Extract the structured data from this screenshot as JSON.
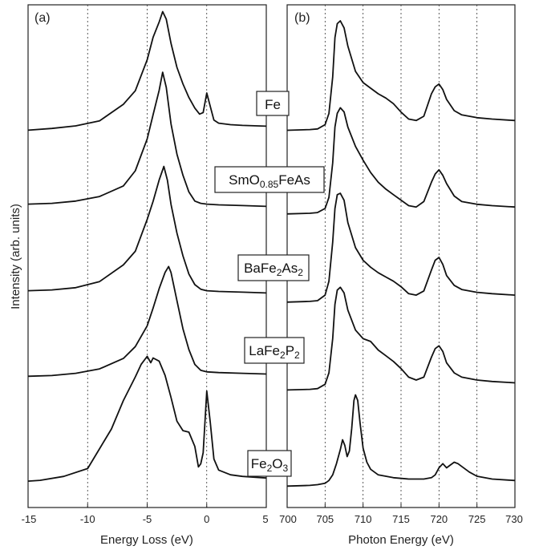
{
  "chart_data": [
    {
      "type": "line",
      "panel_label": "(a)",
      "xlabel": "Energy Loss (eV)",
      "ylabel": "Intensity (arb. units)",
      "xlim": [
        -15,
        5
      ],
      "xticks": [
        -15,
        -10,
        -5,
        0,
        5
      ],
      "grid": "vertical dotted at each tick",
      "series": [
        {
          "sample": "Fe",
          "x": [
            -15,
            -13,
            -11,
            -9,
            -7,
            -6,
            -5,
            -4.5,
            -4,
            -3.7,
            -3.4,
            -3,
            -2.5,
            -2,
            -1.5,
            -1,
            -0.6,
            -0.3,
            0,
            0.3,
            0.6,
            1,
            2,
            3,
            5
          ],
          "y": [
            0.3,
            1.5,
            3.2,
            6.5,
            17.5,
            26.5,
            47,
            62,
            72,
            79,
            74,
            58,
            42,
            31,
            22,
            15,
            11,
            12,
            25,
            16,
            7,
            5,
            4,
            3.5,
            3
          ]
        },
        {
          "sample": "SmO0.85FeAs",
          "x": [
            -15,
            -13,
            -11,
            -9,
            -7,
            -6,
            -5,
            -4.5,
            -4,
            -3.7,
            -3.4,
            -3,
            -2.5,
            -2,
            -1.5,
            -1,
            -0.5,
            0,
            1,
            3,
            5
          ],
          "y": [
            5,
            5.5,
            7,
            10,
            17,
            27,
            48,
            64,
            80,
            92,
            82,
            58,
            38,
            24,
            13,
            7,
            5.5,
            5,
            4.5,
            4,
            3.5
          ]
        },
        {
          "sample": "BaFe2As2",
          "x": [
            -15,
            -13,
            -11,
            -9,
            -7,
            -6,
            -5,
            -4.5,
            -4,
            -3.6,
            -3.3,
            -3,
            -2.5,
            -2,
            -1.5,
            -1,
            -0.5,
            0,
            1,
            3,
            5
          ],
          "y": [
            5,
            5.5,
            7,
            11,
            22,
            31,
            52,
            64,
            78,
            87,
            78,
            62,
            43,
            28,
            16,
            9,
            6,
            5,
            4.5,
            4,
            3.5
          ]
        },
        {
          "sample": "LaFe2P2",
          "x": [
            -15,
            -13,
            -11,
            -9,
            -7,
            -6,
            -5,
            -4.5,
            -4,
            -3.5,
            -3.2,
            -3,
            -2.5,
            -2,
            -1.5,
            -1,
            -0.5,
            0,
            1,
            3,
            5
          ],
          "y": [
            2,
            2.5,
            4,
            7,
            14,
            22,
            36,
            48,
            61,
            72,
            76,
            72,
            53,
            34,
            20,
            10,
            6,
            5,
            4.5,
            4,
            3.5
          ]
        },
        {
          "sample": "Fe2O3",
          "x": [
            -15,
            -14,
            -12,
            -10,
            -8,
            -7,
            -6,
            -5.5,
            -5,
            -4.7,
            -4.5,
            -4,
            -3.5,
            -3,
            -2.5,
            -2,
            -1.5,
            -1,
            -0.7,
            -0.5,
            -0.3,
            0,
            0.3,
            0.6,
            1,
            2,
            3,
            5
          ],
          "y": [
            4,
            4.5,
            7,
            12,
            37,
            55,
            70,
            78,
            83,
            79,
            82,
            80,
            71,
            57,
            42,
            36,
            35,
            26,
            13,
            15,
            22,
            61,
            41,
            18,
            11,
            8,
            7,
            6
          ]
        }
      ]
    },
    {
      "type": "line",
      "panel_label": "(b)",
      "xlabel": "Photon Energy (eV)",
      "xlim": [
        700,
        730
      ],
      "xticks": [
        700,
        705,
        710,
        715,
        720,
        725,
        730
      ],
      "grid": "vertical dotted at each tick",
      "series": [
        {
          "sample": "Fe",
          "x": [
            700,
            703,
            704,
            705,
            705.5,
            706,
            706.3,
            706.6,
            707,
            707.5,
            708,
            709,
            710,
            711,
            712,
            713,
            714,
            715,
            716,
            717,
            718,
            719,
            719.5,
            720,
            720.5,
            721,
            722,
            723,
            725,
            727,
            730
          ],
          "y": [
            2,
            2.5,
            3,
            6,
            14,
            40,
            68,
            78,
            80,
            75,
            62,
            44,
            36,
            32,
            28,
            25,
            21,
            15,
            10,
            9,
            12,
            28,
            33,
            35,
            31,
            24,
            16,
            13,
            11,
            10,
            9
          ]
        },
        {
          "sample": "SmO0.85FeAs",
          "x": [
            700,
            703,
            704,
            705,
            705.5,
            706,
            706.3,
            706.6,
            707,
            707.5,
            708,
            709,
            710,
            711,
            712,
            713,
            714,
            715,
            716,
            717,
            718,
            719,
            719.5,
            720,
            720.5,
            721,
            722,
            723,
            725,
            727,
            730
          ],
          "y": [
            3,
            3.5,
            4,
            7,
            15,
            40,
            66,
            76,
            80,
            77,
            66,
            52,
            42,
            33,
            26,
            21,
            17,
            13,
            9,
            8,
            12,
            26,
            32,
            35,
            31,
            25,
            16,
            12,
            10,
            9,
            8
          ]
        },
        {
          "sample": "BaFe2As2",
          "x": [
            700,
            703,
            704,
            705,
            705.5,
            706,
            706.3,
            706.6,
            707,
            707.5,
            708,
            709,
            710,
            711,
            712,
            713,
            714,
            715,
            716,
            717,
            718,
            719,
            719.5,
            720,
            720.5,
            721,
            722,
            723,
            725,
            727,
            730
          ],
          "y": [
            3,
            3.5,
            4,
            8,
            18,
            46,
            70,
            80,
            81,
            76,
            60,
            42,
            33,
            28,
            24,
            21,
            18,
            14,
            9,
            8,
            11,
            26,
            33,
            35,
            30,
            22,
            15,
            12,
            10,
            9,
            8
          ]
        },
        {
          "sample": "LaFe2P2",
          "x": [
            700,
            703,
            704,
            705,
            705.5,
            706,
            706.3,
            706.6,
            707,
            707.5,
            708,
            709,
            710,
            711,
            712,
            713,
            714,
            715,
            716,
            717,
            718,
            719,
            719.5,
            720,
            720.5,
            721,
            722,
            723,
            725,
            727,
            730
          ],
          "y": [
            2,
            2.5,
            3,
            6,
            14,
            38,
            62,
            72,
            74,
            70,
            58,
            44,
            38,
            36,
            30,
            26,
            22,
            17,
            11,
            9,
            11,
            25,
            31,
            33,
            29,
            21,
            14,
            11,
            9,
            8,
            7
          ]
        },
        {
          "sample": "Fe2O3",
          "x": [
            700,
            703,
            704,
            705,
            705.5,
            706,
            706.5,
            707,
            707.3,
            707.6,
            707.9,
            708.2,
            708.5,
            708.8,
            709,
            709.3,
            709.6,
            710,
            710.5,
            711,
            712,
            714,
            716,
            718,
            719,
            719.5,
            720,
            720.5,
            721,
            721.5,
            722,
            722.5,
            723,
            724,
            725,
            727,
            730
          ],
          "y": [
            1,
            1.5,
            2,
            3,
            5,
            9,
            17,
            27,
            34,
            30,
            22,
            26,
            42,
            62,
            66,
            62,
            46,
            28,
            18,
            13,
            9,
            7,
            6,
            6,
            7,
            9,
            14,
            17,
            14,
            16,
            18,
            17,
            15,
            11,
            8,
            6,
            5
          ]
        }
      ]
    }
  ],
  "sample_labels": {
    "fe": "Fe",
    "sm_base": "SmO",
    "sm_sub": "0.85",
    "sm_tail": "FeAs",
    "ba_base": "BaFe",
    "ba_sub1": "2",
    "ba_mid": "As",
    "ba_sub2": "2",
    "la_base": "LaFe",
    "la_sub1": "2",
    "la_mid": "P",
    "la_sub2": "2",
    "fe2o3_base": "Fe",
    "fe2o3_sub1": "2",
    "fe2o3_mid": "O",
    "fe2o3_sub2": "3"
  }
}
